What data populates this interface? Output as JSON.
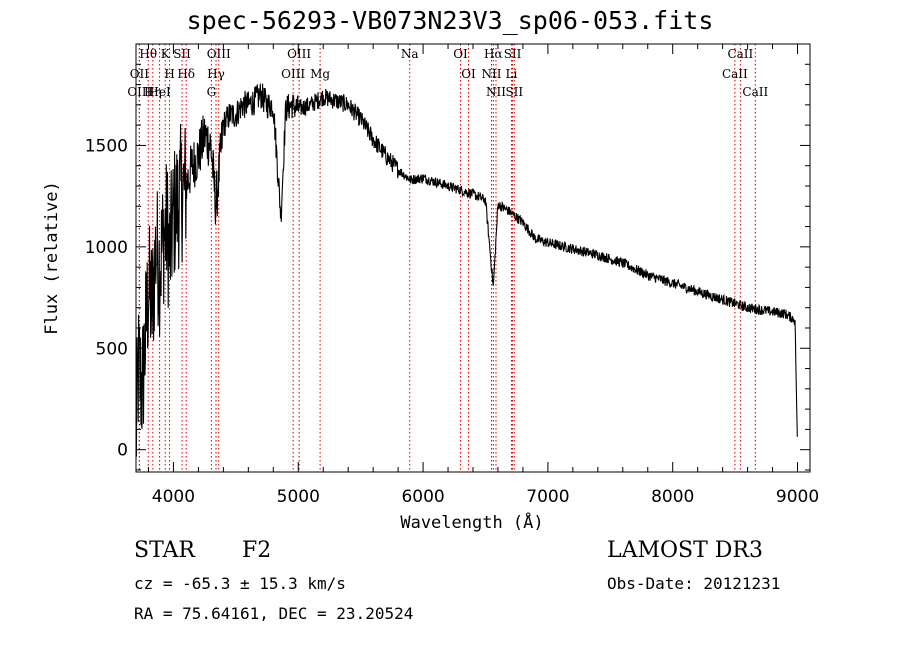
{
  "chart_data": {
    "type": "line",
    "title": "spec-56293-VB073N23V3_sp06-053.fits",
    "xlabel": "Wavelength (Å)",
    "ylabel": "Flux (relative)",
    "xlim": [
      3700,
      9100
    ],
    "ylim": [
      -110,
      2000
    ],
    "xticks": [
      4000,
      5000,
      6000,
      7000,
      8000,
      9000
    ],
    "yticks": [
      0,
      500,
      1000,
      1500
    ],
    "spectrum_anchors": {
      "wavelength": [
        3700,
        3720,
        3750,
        3780,
        3800,
        3830,
        3860,
        3890,
        3920,
        3950,
        3970,
        4000,
        4050,
        4100,
        4150,
        4200,
        4250,
        4300,
        4340,
        4400,
        4450,
        4500,
        4550,
        4600,
        4650,
        4700,
        4750,
        4800,
        4861,
        4900,
        4950,
        5000,
        5100,
        5200,
        5300,
        5400,
        5500,
        5600,
        5700,
        5800,
        5900,
        6000,
        6100,
        6200,
        6300,
        6400,
        6500,
        6563,
        6600,
        6700,
        6800,
        6900,
        7000,
        7200,
        7400,
        7600,
        7800,
        8000,
        8200,
        8400,
        8500,
        8600,
        8700,
        8800,
        8900,
        8980,
        9000
      ],
      "flux": [
        50,
        400,
        300,
        600,
        800,
        700,
        1000,
        900,
        1050,
        1100,
        950,
        1150,
        1250,
        1300,
        1400,
        1450,
        1550,
        1500,
        1200,
        1600,
        1650,
        1650,
        1700,
        1700,
        1720,
        1750,
        1700,
        1700,
        1150,
        1680,
        1700,
        1680,
        1700,
        1740,
        1720,
        1700,
        1630,
        1530,
        1450,
        1380,
        1330,
        1340,
        1320,
        1300,
        1280,
        1260,
        1230,
        800,
        1210,
        1170,
        1120,
        1040,
        1020,
        990,
        960,
        920,
        860,
        820,
        780,
        740,
        720,
        700,
        690,
        680,
        670,
        640,
        0
      ]
    },
    "emission_lines": [
      {
        "label": "Hθ",
        "wavelength": 3798
      },
      {
        "label": "OII",
        "wavelength": 3727
      },
      {
        "label": "OIII",
        "wavelength": 3727
      },
      {
        "label": "K",
        "wavelength": 3934
      },
      {
        "label": "HeI",
        "wavelength": 3889
      },
      {
        "label": "Hη",
        "wavelength": 3835
      },
      {
        "label": "SII",
        "wavelength": 4069
      },
      {
        "label": "H",
        "wavelength": 3969
      },
      {
        "label": "Hδ",
        "wavelength": 4102
      },
      {
        "label": "OIII",
        "wavelength": 4363
      },
      {
        "label": "Hγ",
        "wavelength": 4341
      },
      {
        "label": "G",
        "wavelength": 4304
      },
      {
        "label": "OIII",
        "wavelength": 5007
      },
      {
        "label": "OIII",
        "wavelength": 4959
      },
      {
        "label": "Mg",
        "wavelength": 5175
      },
      {
        "label": "Na",
        "wavelength": 5893
      },
      {
        "label": "OI",
        "wavelength": 6300
      },
      {
        "label": "OI",
        "wavelength": 6364
      },
      {
        "label": "Hα",
        "wavelength": 6563
      },
      {
        "label": "NII",
        "wavelength": 6548
      },
      {
        "label": "NII",
        "wavelength": 6584
      },
      {
        "label": "SII",
        "wavelength": 6717
      },
      {
        "label": "Li",
        "wavelength": 6708
      },
      {
        "label": "SII",
        "wavelength": 6731
      },
      {
        "label": "CaII",
        "wavelength": 8542
      },
      {
        "label": "CaII",
        "wavelength": 8498
      },
      {
        "label": "CaII",
        "wavelength": 8662
      }
    ],
    "line_color": "#000000",
    "marker_color": "#cc0000"
  },
  "info": {
    "object_class": "STAR",
    "subclass": "F2",
    "survey": "LAMOST DR3",
    "cz": "cz = -65.3 ± 15.3 km/s",
    "obs_date": "Obs-Date: 20121231",
    "coords": "RA =  75.64161, DEC =  23.20524"
  }
}
